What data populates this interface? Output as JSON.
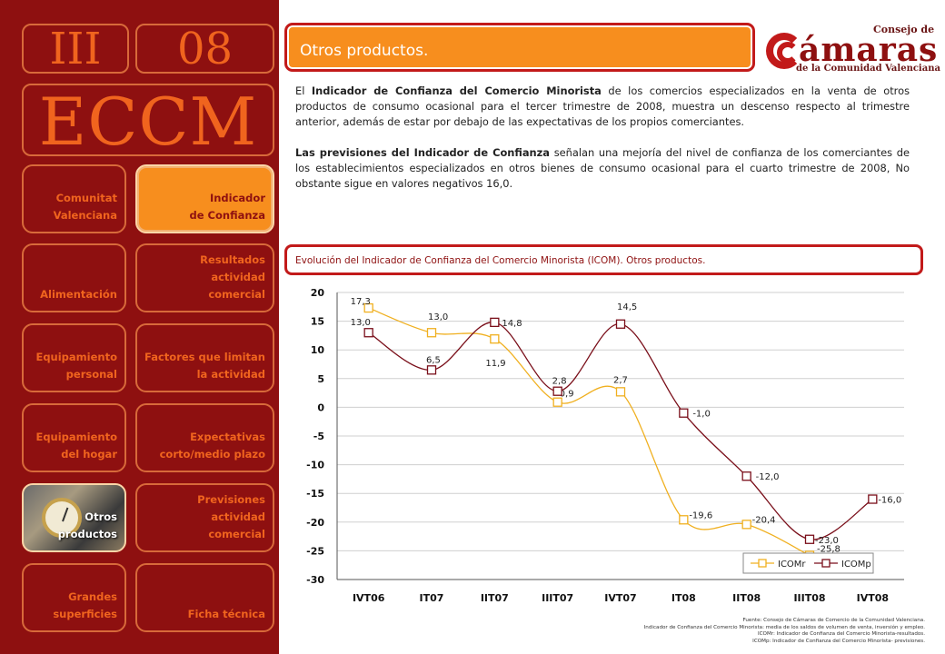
{
  "sidebar": {
    "volume": "III",
    "number": "08",
    "acronym": "ECCM",
    "nav": [
      {
        "label": "Comunitat\nValenciana",
        "state": "normal"
      },
      {
        "label": "Indicador\nde Confianza",
        "state": "active"
      },
      {
        "label": "Alimentación",
        "state": "normal"
      },
      {
        "label": "Resultados actividad\ncomercial",
        "state": "normal"
      },
      {
        "label": "Equipamiento\npersonal",
        "state": "normal"
      },
      {
        "label": "Factores que limitan\nla actividad",
        "state": "normal"
      },
      {
        "label": "Equipamiento\ndel hogar",
        "state": "normal"
      },
      {
        "label": "Expectativas\ncorto/medio plazo",
        "state": "normal"
      },
      {
        "label": "Otros\nproductos",
        "state": "selected-photo"
      },
      {
        "label": "Previsiones actividad\ncomercial",
        "state": "normal"
      },
      {
        "label": "Grandes\nsuperficies",
        "state": "normal"
      },
      {
        "label": "Ficha técnica",
        "state": "normal"
      }
    ]
  },
  "header": {
    "title": "Otros productos.",
    "logo": {
      "line1": "Consejo de",
      "line2": "ámaras",
      "line3": "de la Comunidad Valenciana"
    }
  },
  "body_text": {
    "p1_pre": "El ",
    "p1_bold": "Indicador de Confianza del Comercio Minorista",
    "p1_rest": " de los comercios especializados en la venta de otros productos de consumo ocasional para el tercer trimestre de 2008, muestra un descenso respecto al trimestre anterior, además de estar por debajo de las expectativas de los propios comerciantes.",
    "p2_bold": "Las previsiones del Indicador de Confianza",
    "p2_rest": " señalan una mejoría del nivel de confianza de los comerciantes de los establecimientos especializados en otros bienes de consumo ocasional para el cuarto trimestre de 2008, No obstante sigue en valores negativos 16,0."
  },
  "chart_title": "Evolución del Indicador de Confianza del Comercio Minorista (ICOM). Otros productos.",
  "chart_data": {
    "type": "line",
    "categories": [
      "IVT06",
      "IT07",
      "IIT07",
      "IIIT07",
      "IVT07",
      "IT08",
      "IIT08",
      "IIIT08",
      "IVT08"
    ],
    "ylim": [
      -30,
      20
    ],
    "yticks": [
      20,
      15,
      10,
      5,
      0,
      -5,
      -10,
      -15,
      -20,
      -25,
      -30
    ],
    "grid": true,
    "legend_position": "bottom-right",
    "series": [
      {
        "name": "ICOMr",
        "color": "#f0b020",
        "values": [
          17.3,
          13.0,
          11.9,
          0.9,
          2.7,
          -19.6,
          -20.4,
          -25.8,
          null
        ],
        "labels": [
          "17,3",
          "13,0",
          "11,9",
          "0,9",
          "2,7",
          "-19,6",
          "-20,4",
          "-25,8",
          null
        ]
      },
      {
        "name": "ICOMp",
        "color": "#7a0f1a",
        "values": [
          13.0,
          6.5,
          14.8,
          2.8,
          14.5,
          -1.0,
          -12.0,
          -23.0,
          -16.0
        ],
        "labels": [
          "13,0",
          "6,5",
          "14,8",
          "2,8",
          "14,5",
          "-1,0",
          "-12,0",
          "-23,0",
          "-16,0"
        ]
      }
    ]
  },
  "source": [
    "Fuente: Consejo de Cámaras de Comercio de la Comunidad Valenciana.",
    "Indicador de Confianza del Comercio Minorista: media de los saldos de volumen de venta, inversión y empleo.",
    "ICOMr: Indicador de Confianza del Comercio Minorista-resultados.",
    "ICOMp: Indicador de Confianza del Comercio Minorista- previsiones."
  ]
}
